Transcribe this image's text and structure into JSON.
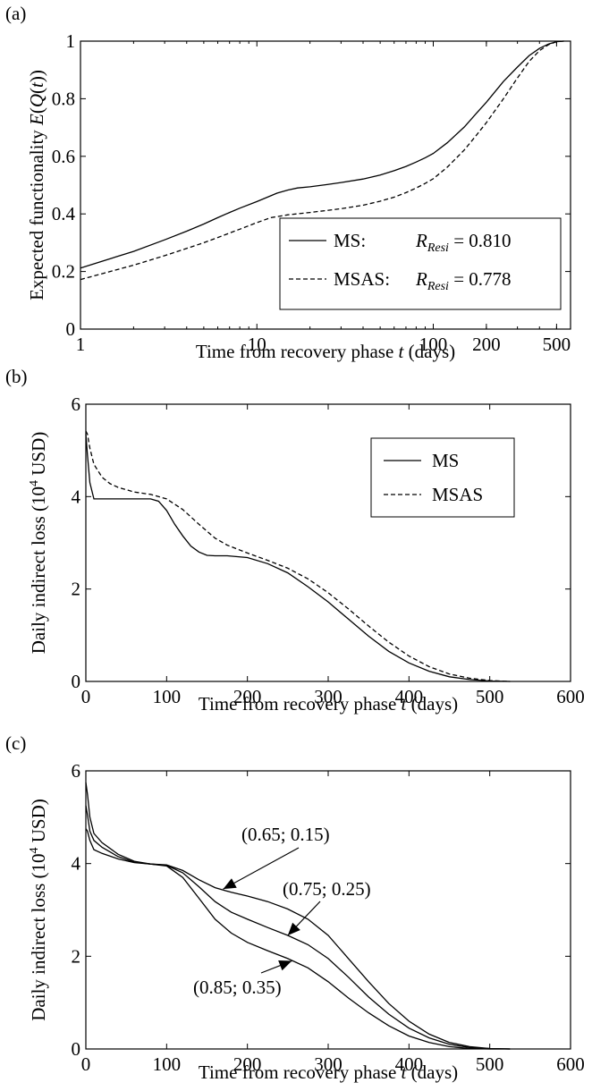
{
  "chart_data": [
    {
      "panel_label": "(a)",
      "type": "line",
      "xscale": "log",
      "xlim": [
        1,
        600
      ],
      "ylim": [
        0,
        1
      ],
      "xticks": [
        1,
        10,
        100,
        200,
        500
      ],
      "xtick_labels": [
        "1",
        "10",
        "100",
        "200",
        "500"
      ],
      "yticks": [
        0,
        0.2,
        0.4,
        0.6,
        0.8,
        1
      ],
      "ytick_labels": [
        "0",
        "0.2",
        "0.4",
        "0.6",
        "0.8",
        "1"
      ],
      "xlabel": "Time from recovery phase t (days)",
      "ylabel": "Expected functionality E(Q(t))",
      "legend_position": "lower-right",
      "series": [
        {
          "name": "MS:",
          "legend_r_label": "R",
          "legend_r_sub": "Resi",
          "legend_r_value": " = 0.810",
          "dash": "solid",
          "x": [
            1,
            2,
            3,
            4,
            5,
            6,
            7,
            8,
            10,
            12,
            13,
            15,
            17,
            20,
            25,
            30,
            40,
            50,
            60,
            70,
            80,
            90,
            100,
            120,
            150,
            175,
            200,
            250,
            300,
            350,
            400,
            450,
            500,
            550
          ],
          "y": [
            0.212,
            0.27,
            0.31,
            0.34,
            0.365,
            0.387,
            0.405,
            0.42,
            0.443,
            0.463,
            0.472,
            0.483,
            0.49,
            0.494,
            0.502,
            0.509,
            0.521,
            0.535,
            0.55,
            0.565,
            0.58,
            0.595,
            0.61,
            0.647,
            0.702,
            0.748,
            0.788,
            0.86,
            0.91,
            0.95,
            0.975,
            0.99,
            0.998,
            1.0
          ]
        },
        {
          "name": "MSAS:",
          "legend_r_label": "R",
          "legend_r_sub": "Resi",
          "legend_r_value": " = 0.778",
          "dash": "dashed",
          "x": [
            1,
            2,
            3,
            4,
            5,
            6,
            8,
            10,
            12,
            15,
            20,
            25,
            30,
            40,
            50,
            60,
            70,
            80,
            90,
            100,
            120,
            150,
            175,
            200,
            250,
            300,
            350,
            400,
            450,
            500,
            550
          ],
          "y": [
            0.172,
            0.222,
            0.255,
            0.28,
            0.3,
            0.318,
            0.347,
            0.37,
            0.387,
            0.397,
            0.405,
            0.412,
            0.418,
            0.43,
            0.444,
            0.458,
            0.474,
            0.49,
            0.506,
            0.522,
            0.562,
            0.622,
            0.672,
            0.717,
            0.8,
            0.872,
            0.93,
            0.967,
            0.988,
            0.998,
            1.0
          ]
        }
      ]
    },
    {
      "panel_label": "(b)",
      "type": "line",
      "xlim": [
        0,
        600
      ],
      "ylim": [
        0,
        6
      ],
      "xticks": [
        0,
        100,
        200,
        300,
        400,
        500,
        600
      ],
      "xtick_labels": [
        "0",
        "100",
        "200",
        "300",
        "400",
        "500",
        "600"
      ],
      "yticks": [
        0,
        2,
        4,
        6
      ],
      "ytick_labels": [
        "0",
        "2",
        "4",
        "6"
      ],
      "xlabel": "Time from recovery phase t (days)",
      "ylabel": "Daily indirect loss (10^4 USD)",
      "legend_position": "upper-right",
      "series": [
        {
          "name": "MS",
          "dash": "solid",
          "x": [
            0,
            2,
            5,
            10,
            20,
            40,
            60,
            80,
            90,
            100,
            110,
            120,
            130,
            140,
            150,
            160,
            175,
            200,
            225,
            250,
            275,
            300,
            325,
            350,
            375,
            400,
            425,
            450,
            475,
            500,
            525
          ],
          "y": [
            5.35,
            4.9,
            4.3,
            3.95,
            3.95,
            3.95,
            3.95,
            3.95,
            3.9,
            3.7,
            3.4,
            3.15,
            2.93,
            2.8,
            2.73,
            2.72,
            2.72,
            2.68,
            2.55,
            2.35,
            2.05,
            1.72,
            1.35,
            0.98,
            0.65,
            0.4,
            0.22,
            0.1,
            0.04,
            0.01,
            0
          ]
        },
        {
          "name": "MSAS",
          "dash": "dashed",
          "x": [
            0,
            2,
            5,
            10,
            20,
            30,
            40,
            60,
            80,
            100,
            120,
            140,
            160,
            175,
            200,
            225,
            250,
            275,
            300,
            325,
            350,
            375,
            400,
            425,
            450,
            475,
            500,
            525
          ],
          "y": [
            5.42,
            5.35,
            5.05,
            4.7,
            4.42,
            4.28,
            4.2,
            4.1,
            4.05,
            3.95,
            3.72,
            3.4,
            3.1,
            2.95,
            2.78,
            2.62,
            2.45,
            2.22,
            1.92,
            1.57,
            1.2,
            0.85,
            0.55,
            0.32,
            0.16,
            0.07,
            0.02,
            0
          ]
        }
      ]
    },
    {
      "panel_label": "(c)",
      "type": "line",
      "xlim": [
        0,
        600
      ],
      "ylim": [
        0,
        6
      ],
      "xticks": [
        0,
        100,
        200,
        300,
        400,
        500,
        600
      ],
      "xtick_labels": [
        "0",
        "100",
        "200",
        "300",
        "400",
        "500",
        "600"
      ],
      "yticks": [
        0,
        2,
        4,
        6
      ],
      "ytick_labels": [
        "0",
        "2",
        "4",
        "6"
      ],
      "xlabel": "Time from recovery phase t (days)",
      "ylabel": "Daily indirect loss (10^4 USD)",
      "annotations": [
        {
          "text": "(0.65; 0.15)",
          "target_x": 170,
          "target_y": 3.45
        },
        {
          "text": "(0.75; 0.25)",
          "target_x": 250,
          "target_y": 2.45
        },
        {
          "text": "(0.85; 0.35)",
          "target_x": 255,
          "target_y": 1.9
        }
      ],
      "series": [
        {
          "name": "(0.65; 0.15)",
          "dash": "solid",
          "x": [
            0,
            2,
            5,
            10,
            20,
            40,
            60,
            80,
            100,
            120,
            140,
            160,
            180,
            200,
            225,
            250,
            275,
            300,
            325,
            350,
            375,
            400,
            425,
            450,
            475,
            500,
            525
          ],
          "y": [
            4.75,
            4.7,
            4.5,
            4.3,
            4.22,
            4.1,
            4.02,
            3.99,
            3.97,
            3.85,
            3.65,
            3.48,
            3.38,
            3.3,
            3.18,
            3.02,
            2.8,
            2.45,
            1.95,
            1.45,
            0.98,
            0.6,
            0.32,
            0.14,
            0.05,
            0.01,
            0
          ]
        },
        {
          "name": "(0.75; 0.25)",
          "dash": "solid",
          "x": [
            0,
            2,
            5,
            10,
            20,
            40,
            60,
            80,
            100,
            120,
            140,
            160,
            180,
            200,
            225,
            250,
            275,
            300,
            325,
            350,
            375,
            400,
            425,
            450,
            475,
            500,
            525
          ],
          "y": [
            5.25,
            5.05,
            4.7,
            4.5,
            4.35,
            4.15,
            4.03,
            3.99,
            3.96,
            3.8,
            3.5,
            3.18,
            2.95,
            2.8,
            2.62,
            2.45,
            2.25,
            1.95,
            1.55,
            1.12,
            0.75,
            0.45,
            0.24,
            0.1,
            0.03,
            0.01,
            0
          ]
        },
        {
          "name": "(0.85; 0.35)",
          "dash": "solid",
          "x": [
            0,
            2,
            5,
            10,
            20,
            40,
            60,
            80,
            100,
            120,
            140,
            160,
            180,
            200,
            225,
            250,
            275,
            300,
            325,
            350,
            375,
            400,
            425,
            450,
            475,
            500,
            525
          ],
          "y": [
            5.75,
            5.5,
            5.0,
            4.65,
            4.45,
            4.2,
            4.05,
            3.99,
            3.95,
            3.7,
            3.25,
            2.8,
            2.5,
            2.3,
            2.12,
            1.95,
            1.75,
            1.45,
            1.1,
            0.78,
            0.5,
            0.28,
            0.14,
            0.05,
            0.01,
            0,
            0
          ]
        }
      ]
    }
  ]
}
